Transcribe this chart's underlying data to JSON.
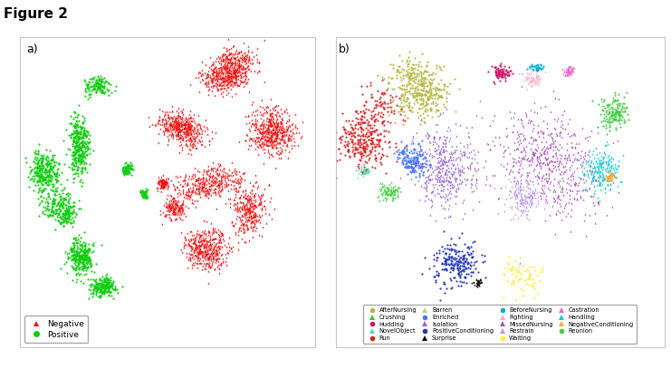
{
  "title": "Figure 2",
  "panel_a_label": "a)",
  "panel_b_label": "b)",
  "figsize": [
    7.41,
    4.07
  ],
  "dpi": 100,
  "neg_color": "#ee1111",
  "pos_color": "#11cc11",
  "background_color": "#ffffff",
  "marker_size": 2.5,
  "categories_b": [
    {
      "label": "AfterNursing",
      "color": "#b5b840",
      "marker": "o"
    },
    {
      "label": "Crushing",
      "color": "#33cc33",
      "marker": "^"
    },
    {
      "label": "Hudding",
      "color": "#cc1166",
      "marker": "o"
    },
    {
      "label": "NovelObject",
      "color": "#55ddaa",
      "marker": "^"
    },
    {
      "label": "Run",
      "color": "#dd2222",
      "marker": "o"
    },
    {
      "label": "Barren",
      "color": "#cccc77",
      "marker": "^"
    },
    {
      "label": "Enriched",
      "color": "#4477ff",
      "marker": "o"
    },
    {
      "label": "Isolation",
      "color": "#9966cc",
      "marker": "^"
    },
    {
      "label": "PositiveConditioning",
      "color": "#2233bb",
      "marker": "o"
    },
    {
      "label": "Surprise",
      "color": "#111111",
      "marker": "^"
    },
    {
      "label": "BeforeNursing",
      "color": "#00aacc",
      "marker": "o"
    },
    {
      "label": "Fighting",
      "color": "#ffaacc",
      "marker": "^"
    },
    {
      "label": "MissedNursing",
      "color": "#aa55bb",
      "marker": "^"
    },
    {
      "label": "Restrain",
      "color": "#bb99ee",
      "marker": "^"
    },
    {
      "label": "Waiting",
      "color": "#ffee33",
      "marker": "o"
    },
    {
      "label": "Castration",
      "color": "#ee66cc",
      "marker": "^"
    },
    {
      "label": "Handling",
      "color": "#00cccc",
      "marker": "^"
    },
    {
      "label": "NegativeConditioning",
      "color": "#ffaa33",
      "marker": "^"
    },
    {
      "label": "Reunion",
      "color": "#44cc44",
      "marker": "o"
    }
  ],
  "neg_clusters_a": [
    [
      0.68,
      0.87,
      600,
      0.055,
      0.045
    ],
    [
      0.55,
      0.72,
      450,
      0.055,
      0.04
    ],
    [
      0.82,
      0.68,
      500,
      0.055,
      0.055
    ],
    [
      0.58,
      0.52,
      380,
      0.065,
      0.042
    ],
    [
      0.8,
      0.47,
      300,
      0.045,
      0.055
    ],
    [
      0.63,
      0.3,
      420,
      0.07,
      0.055
    ],
    [
      0.52,
      0.46,
      150,
      0.025,
      0.025
    ],
    [
      0.48,
      0.53,
      100,
      0.018,
      0.018
    ]
  ],
  "pos_clusters_a": [
    [
      0.27,
      0.84,
      130,
      0.035,
      0.025
    ],
    [
      0.19,
      0.7,
      350,
      0.025,
      0.06
    ],
    [
      0.1,
      0.57,
      300,
      0.028,
      0.055
    ],
    [
      0.15,
      0.43,
      250,
      0.038,
      0.038
    ],
    [
      0.2,
      0.28,
      280,
      0.038,
      0.048
    ],
    [
      0.28,
      0.19,
      200,
      0.038,
      0.028
    ],
    [
      0.36,
      0.57,
      80,
      0.014,
      0.018
    ],
    [
      0.42,
      0.49,
      60,
      0.01,
      0.012
    ]
  ],
  "clusters_b": [
    [
      0.27,
      0.82,
      380,
      0.072,
      0.06
    ],
    [
      0.16,
      0.5,
      90,
      0.028,
      0.022
    ],
    [
      0.5,
      0.88,
      80,
      0.022,
      0.02
    ],
    [
      0.09,
      0.57,
      55,
      0.014,
      0.014
    ],
    [
      0.1,
      0.65,
      380,
      0.065,
      0.065
    ],
    [
      0.24,
      0.87,
      45,
      0.018,
      0.012
    ],
    [
      0.23,
      0.61,
      160,
      0.038,
      0.038
    ],
    [
      0.34,
      0.54,
      440,
      0.085,
      0.095
    ],
    [
      0.35,
      0.26,
      220,
      0.065,
      0.065
    ],
    [
      0.43,
      0.21,
      35,
      0.01,
      0.01
    ],
    [
      0.6,
      0.9,
      35,
      0.014,
      0.012
    ],
    [
      0.61,
      0.87,
      70,
      0.024,
      0.018
    ],
    [
      0.61,
      0.62,
      580,
      0.115,
      0.11
    ],
    [
      0.58,
      0.47,
      170,
      0.048,
      0.048
    ],
    [
      0.57,
      0.22,
      70,
      0.048,
      0.038
    ],
    [
      0.71,
      0.89,
      65,
      0.014,
      0.012
    ],
    [
      0.81,
      0.58,
      200,
      0.048,
      0.058
    ],
    [
      0.84,
      0.55,
      45,
      0.014,
      0.014
    ],
    [
      0.85,
      0.77,
      140,
      0.038,
      0.038
    ]
  ]
}
